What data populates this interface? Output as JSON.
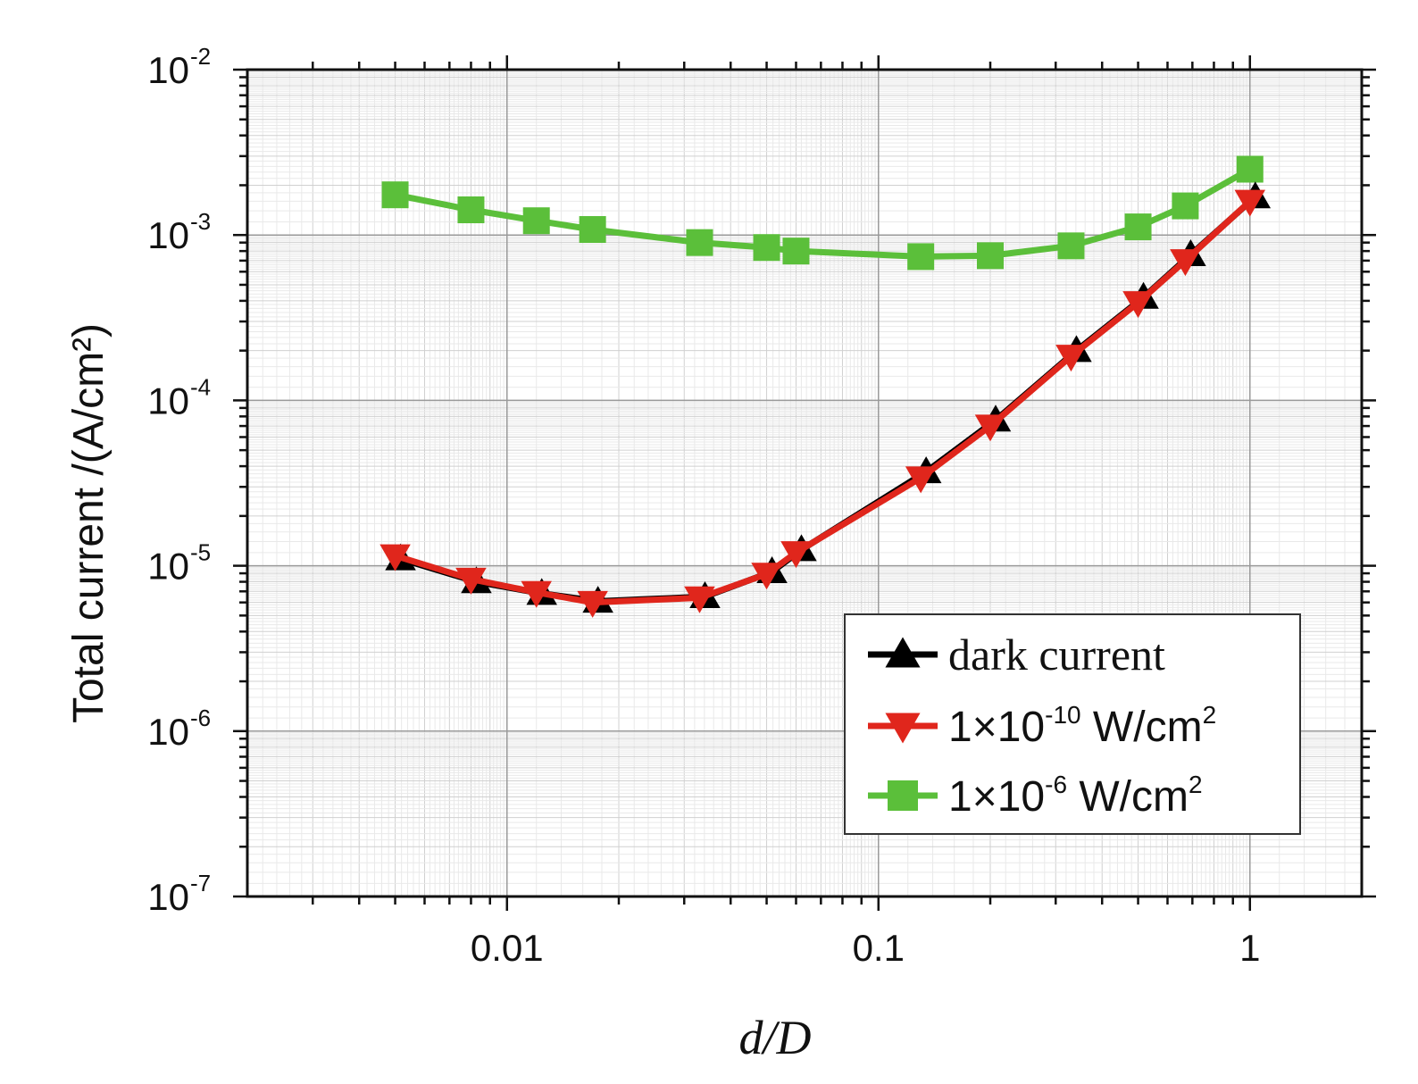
{
  "chart_data": {
    "type": "line",
    "xlabel": "d/D",
    "ylabel": "Total current /(A/cm²)",
    "x_scale": "log",
    "y_scale": "log",
    "xlim": [
      0.002,
      2.0
    ],
    "ylim": [
      1e-07,
      0.01
    ],
    "grid": true,
    "legend_position": "bottom-right",
    "x_ticks": [
      {
        "value": 0.01,
        "label": "0.01"
      },
      {
        "value": 0.1,
        "label": "0.1"
      },
      {
        "value": 1,
        "label": "1"
      }
    ],
    "y_ticks": [
      {
        "value": 0.01,
        "base": "10",
        "exp": "-2"
      },
      {
        "value": 0.001,
        "base": "10",
        "exp": "-3"
      },
      {
        "value": 0.0001,
        "base": "10",
        "exp": "-4"
      },
      {
        "value": 1e-05,
        "base": "10",
        "exp": "-5"
      },
      {
        "value": 1e-06,
        "base": "10",
        "exp": "-6"
      },
      {
        "value": 1e-07,
        "base": "10",
        "exp": "-7"
      }
    ],
    "series": [
      {
        "name": "dark current",
        "color": "#000000",
        "marker": "triangle-up",
        "x": [
          0.005,
          0.008,
          0.012,
          0.017,
          0.033,
          0.05,
          0.06,
          0.13,
          0.2,
          0.33,
          0.5,
          0.67,
          1.0
        ],
        "y": [
          1.1e-05,
          8e-06,
          6.8e-06,
          6.1e-06,
          6.5e-06,
          9.2e-06,
          1.25e-05,
          3.7e-05,
          7.6e-05,
          0.0002,
          0.00042,
          0.00076,
          0.0017
        ]
      },
      {
        "name": "1×10⁻¹⁰ W/cm²",
        "label_parts": {
          "base": "1×10",
          "exp": "-10",
          "unit": " W/cm",
          "unit_exp": "2"
        },
        "color": "#e0261c",
        "marker": "triangle-down",
        "x": [
          0.005,
          0.008,
          0.012,
          0.017,
          0.033,
          0.05,
          0.06,
          0.13,
          0.2,
          0.33,
          0.5,
          0.67,
          1.0
        ],
        "y": [
          1.15e-05,
          8.3e-06,
          6.9e-06,
          6e-06,
          6.4e-06,
          8.9e-06,
          1.2e-05,
          3.4e-05,
          7e-05,
          0.000185,
          0.00039,
          0.0007,
          0.0016
        ]
      },
      {
        "name": "1×10⁻⁶ W/cm²",
        "label_parts": {
          "base": "1×10",
          "exp": "-6",
          "unit": " W/cm",
          "unit_exp": "2"
        },
        "color": "#5bbf3a",
        "marker": "square",
        "x": [
          0.005,
          0.008,
          0.012,
          0.017,
          0.033,
          0.05,
          0.06,
          0.13,
          0.2,
          0.33,
          0.5,
          0.67,
          1.0
        ],
        "y": [
          0.00175,
          0.00142,
          0.00122,
          0.00108,
          0.0009,
          0.00084,
          0.0008,
          0.00074,
          0.00075,
          0.00086,
          0.00112,
          0.0015,
          0.0025
        ]
      }
    ]
  }
}
